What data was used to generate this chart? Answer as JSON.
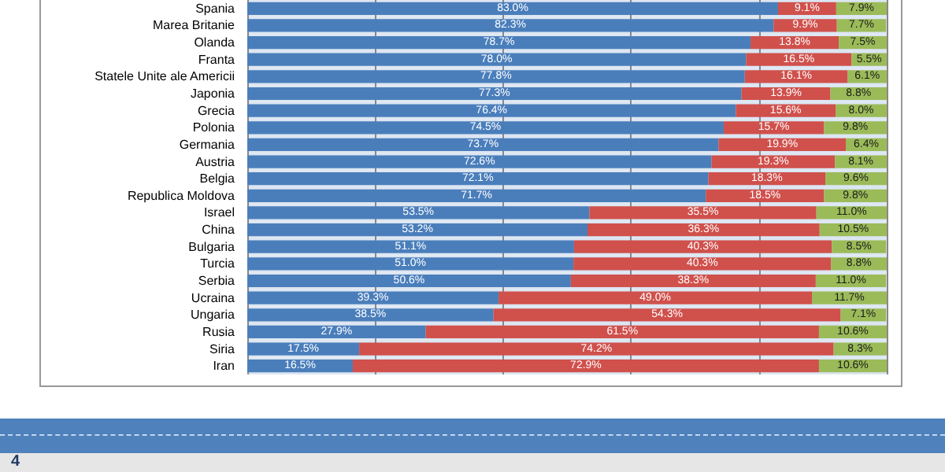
{
  "chart_data": {
    "type": "bar",
    "orientation": "horizontal",
    "stacked": true,
    "tick_labels": "y",
    "grid": "x",
    "categories": [
      "Spania",
      "Marea Britanie",
      "Olanda",
      "Franta",
      "Statele Unite ale Americii",
      "Japonia",
      "Grecia",
      "Polonia",
      "Germania",
      "Austria",
      "Belgia",
      "Republica Moldova",
      "Israel",
      "China",
      "Bulgaria",
      "Turcia",
      "Serbia",
      "Ucraina",
      "Ungaria",
      "Rusia",
      "Siria",
      "Iran"
    ],
    "xlim": [
      0,
      100
    ],
    "xticks": [
      0,
      20,
      40,
      60,
      80,
      100
    ],
    "series": [
      {
        "color": "#4a7ebb",
        "values": [
          83.0,
          82.3,
          78.7,
          78.0,
          77.8,
          77.3,
          76.4,
          74.5,
          73.7,
          72.6,
          72.1,
          71.7,
          53.5,
          53.2,
          51.1,
          51.0,
          50.6,
          39.3,
          38.5,
          27.9,
          17.5,
          16.5
        ],
        "value_labels": [
          "83.0%",
          "82.3%",
          "78.7%",
          "78.0%",
          "77.8%",
          "77.3%",
          "76.4%",
          "74.5%",
          "73.7%",
          "72.6%",
          "72.1%",
          "71.7%",
          "53.5%",
          "53.2%",
          "51.1%",
          "51.0%",
          "50.6%",
          "39.3%",
          "38.5%",
          "27.9%",
          "17.5%",
          "16.5%"
        ]
      },
      {
        "color": "#d0504c",
        "values": [
          9.1,
          9.9,
          13.8,
          16.5,
          16.1,
          13.9,
          15.6,
          15.7,
          19.9,
          19.3,
          18.3,
          18.5,
          35.5,
          36.3,
          40.3,
          40.3,
          38.3,
          49.0,
          54.3,
          61.5,
          74.2,
          72.9
        ],
        "value_labels": [
          "9.1%",
          "9.9%",
          "13.8%",
          "16.5%",
          "16.1%",
          "13.9%",
          "15.6%",
          "15.7%",
          "19.9%",
          "19.3%",
          "18.3%",
          "18.5%",
          "35.5%",
          "36.3%",
          "40.3%",
          "40.3%",
          "38.3%",
          "49.0%",
          "54.3%",
          "61.5%",
          "74.2%",
          "72.9%"
        ]
      },
      {
        "color": "#9bbb59",
        "values": [
          7.9,
          7.7,
          7.5,
          5.5,
          6.1,
          8.8,
          8.0,
          9.8,
          6.4,
          8.1,
          9.6,
          9.8,
          11.0,
          10.5,
          8.5,
          8.8,
          11.0,
          11.7,
          7.1,
          10.6,
          8.3,
          10.6
        ],
        "value_labels": [
          "7.9%",
          "7.7%",
          "7.5%",
          "5.5%",
          "6.1%",
          "8.8%",
          "8.0%",
          "9.8%",
          "6.4%",
          "8.1%",
          "9.6%",
          "9.8%",
          "11.0%",
          "10.5%",
          "8.5%",
          "8.8%",
          "11.0%",
          "11.7%",
          "7.1%",
          "10.6%",
          "8.3%",
          "10.6%"
        ]
      }
    ],
    "annotations": [
      "4"
    ]
  }
}
